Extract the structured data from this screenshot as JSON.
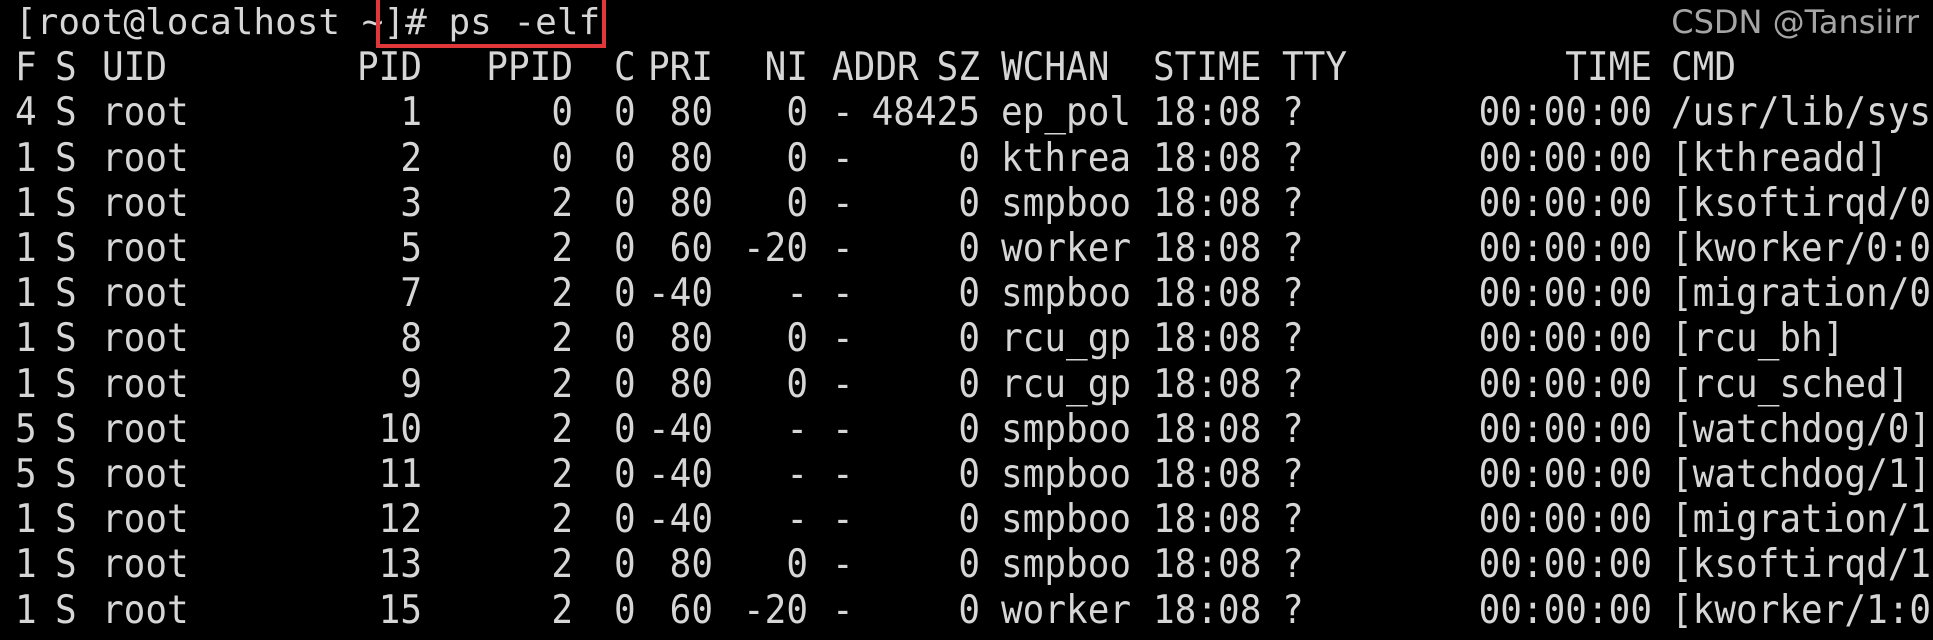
{
  "terminal": {
    "prompt": "[root@localhost ~]# ",
    "command": "ps -elf",
    "highlight_color": "#e0383a",
    "columns": [
      "F",
      "S",
      "UID",
      "PID",
      "PPID",
      "C",
      "PRI",
      "NI",
      "ADDR",
      "SZ",
      "WCHAN",
      "STIME",
      "TTY",
      "TIME",
      "CMD"
    ],
    "rows": [
      [
        "4",
        "S",
        "root",
        "1",
        "0",
        "0",
        "80",
        "0",
        "-",
        "48425",
        "ep_pol",
        "18:08",
        "?",
        "00:00:00",
        "/usr/lib/sys"
      ],
      [
        "1",
        "S",
        "root",
        "2",
        "0",
        "0",
        "80",
        "0",
        "-",
        "0",
        "kthrea",
        "18:08",
        "?",
        "00:00:00",
        "[kthreadd]"
      ],
      [
        "1",
        "S",
        "root",
        "3",
        "2",
        "0",
        "80",
        "0",
        "-",
        "0",
        "smpboo",
        "18:08",
        "?",
        "00:00:00",
        "[ksoftirqd/0"
      ],
      [
        "1",
        "S",
        "root",
        "5",
        "2",
        "0",
        "60",
        "-20",
        "-",
        "0",
        "worker",
        "18:08",
        "?",
        "00:00:00",
        "[kworker/0:0"
      ],
      [
        "1",
        "S",
        "root",
        "7",
        "2",
        "0",
        "-40",
        "-",
        "-",
        "0",
        "smpboo",
        "18:08",
        "?",
        "00:00:00",
        "[migration/0"
      ],
      [
        "1",
        "S",
        "root",
        "8",
        "2",
        "0",
        "80",
        "0",
        "-",
        "0",
        "rcu_gp",
        "18:08",
        "?",
        "00:00:00",
        "[rcu_bh]"
      ],
      [
        "1",
        "S",
        "root",
        "9",
        "2",
        "0",
        "80",
        "0",
        "-",
        "0",
        "rcu_gp",
        "18:08",
        "?",
        "00:00:00",
        "[rcu_sched]"
      ],
      [
        "5",
        "S",
        "root",
        "10",
        "2",
        "0",
        "-40",
        "-",
        "-",
        "0",
        "smpboo",
        "18:08",
        "?",
        "00:00:00",
        "[watchdog/0]"
      ],
      [
        "5",
        "S",
        "root",
        "11",
        "2",
        "0",
        "-40",
        "-",
        "-",
        "0",
        "smpboo",
        "18:08",
        "?",
        "00:00:00",
        "[watchdog/1]"
      ],
      [
        "1",
        "S",
        "root",
        "12",
        "2",
        "0",
        "-40",
        "-",
        "-",
        "0",
        "smpboo",
        "18:08",
        "?",
        "00:00:00",
        "[migration/1"
      ],
      [
        "1",
        "S",
        "root",
        "13",
        "2",
        "0",
        "80",
        "0",
        "-",
        "0",
        "smpboo",
        "18:08",
        "?",
        "00:00:00",
        "[ksoftirqd/1"
      ],
      [
        "1",
        "S",
        "root",
        "15",
        "2",
        "0",
        "60",
        "-20",
        "-",
        "0",
        "worker",
        "18:08",
        "?",
        "00:00:00",
        "[kworker/1:0"
      ]
    ]
  },
  "watermark": "CSDN @Tansiirr"
}
